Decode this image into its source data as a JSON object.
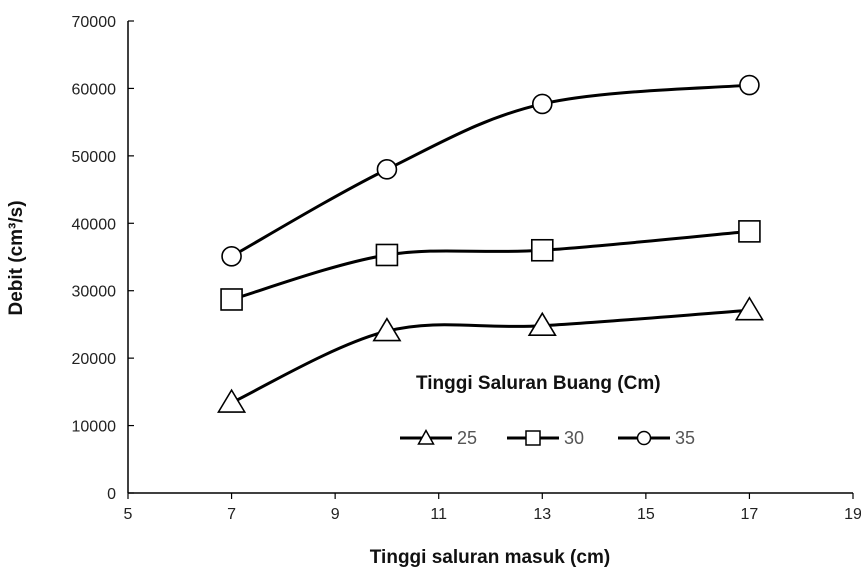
{
  "chart_data": {
    "type": "line",
    "xlabel": "Tinggi saluran masuk (cm)",
    "ylabel": "Debit (cm³/s)",
    "xlim": [
      5,
      19
    ],
    "ylim": [
      0,
      70000
    ],
    "xticks": [
      5,
      7,
      9,
      11,
      13,
      15,
      17,
      19
    ],
    "yticks": [
      0,
      10000,
      20000,
      30000,
      40000,
      50000,
      60000,
      70000
    ],
    "grid": false,
    "smooth": true,
    "legend_title": "Tinggi Saluran Buang (Cm)",
    "legend_position": "center-right",
    "x": [
      7,
      10,
      13,
      17
    ],
    "series": [
      {
        "name": "25",
        "marker": "triangle",
        "values": [
          13400,
          24000,
          24800,
          27100
        ]
      },
      {
        "name": "30",
        "marker": "square",
        "values": [
          28700,
          35300,
          36000,
          38800
        ]
      },
      {
        "name": "35",
        "marker": "circle",
        "values": [
          35100,
          48000,
          57700,
          60500
        ]
      }
    ],
    "colors": {
      "line": "#000000",
      "marker_fill": "#ffffff"
    }
  }
}
